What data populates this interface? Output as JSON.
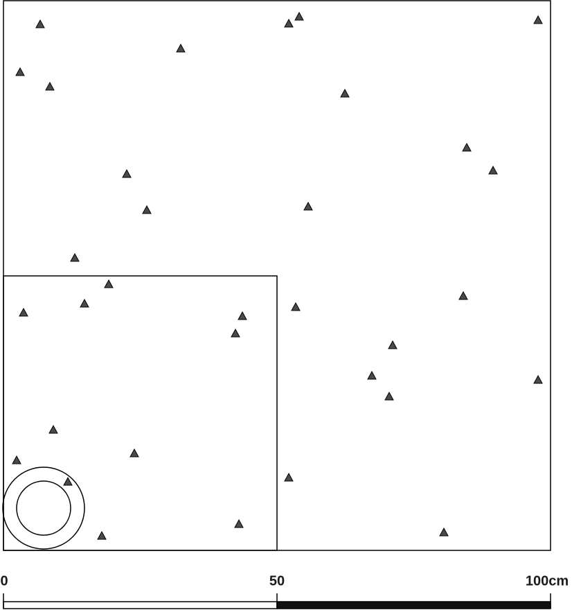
{
  "scale_bar": {
    "labels": [
      "0",
      "50",
      "100cm"
    ]
  }
}
